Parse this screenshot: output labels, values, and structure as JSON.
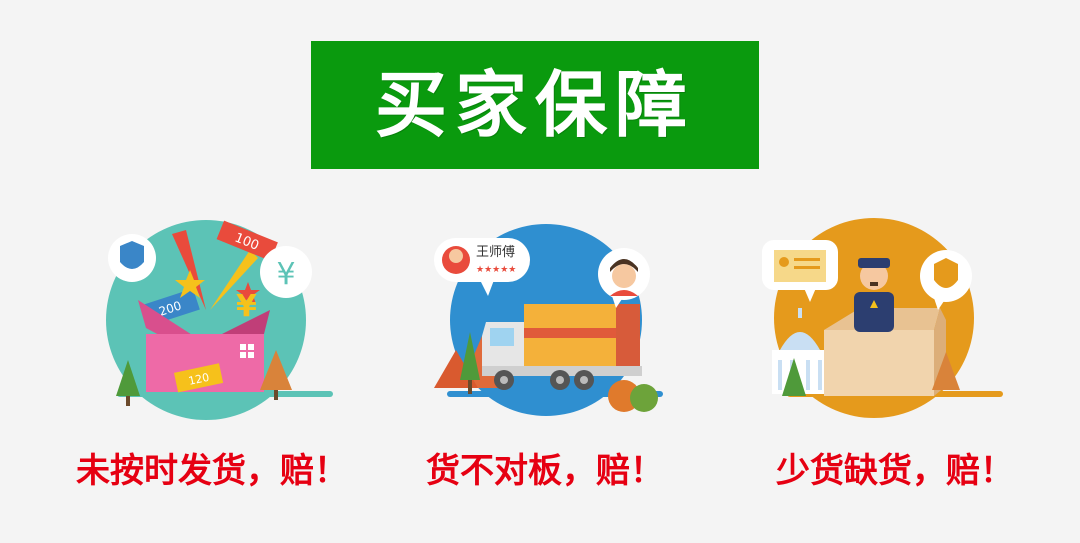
{
  "banner": {
    "title": "买家保障",
    "background": "#0a9a0e",
    "text_color": "#ffffff"
  },
  "guarantees": [
    {
      "caption": "未按时发货，赔！",
      "icon": "gift-box-icon",
      "circle_color": "#5cc3b6",
      "ticket_labels": [
        "100",
        "200",
        "120"
      ],
      "currency_symbol": "¥"
    },
    {
      "caption": "货不对板，赔！",
      "icon": "delivery-truck-icon",
      "circle_color": "#2f8fd0",
      "courier_name": "王师傅",
      "courier_rating": "★★★★★"
    },
    {
      "caption": "少货缺货，赔！",
      "icon": "police-box-icon",
      "circle_color": "#e59a1c"
    }
  ],
  "caption_color": "#e60012"
}
